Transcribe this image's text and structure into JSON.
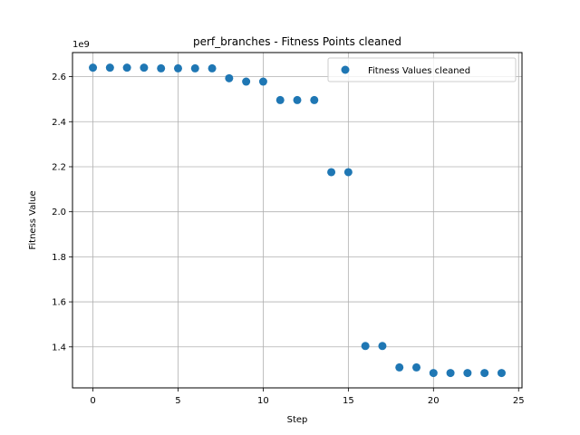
{
  "chart_data": {
    "type": "scatter",
    "title": "perf_branches - Fitness Points cleaned",
    "xlabel": "Step",
    "ylabel": "Fitness Value",
    "y_offset_label": "1e9",
    "grid": true,
    "legend_position": "top-right",
    "xlim": [
      -1.2,
      25.2
    ],
    "ylim": [
      1.218,
      2.707
    ],
    "x_ticks": [
      0,
      5,
      10,
      15,
      20,
      25
    ],
    "x_tick_labels": [
      "0",
      "5",
      "10",
      "15",
      "20",
      "25"
    ],
    "y_ticks": [
      1.4,
      1.6,
      1.8,
      2.0,
      2.2,
      2.4,
      2.6
    ],
    "y_tick_labels": [
      "1.4",
      "1.6",
      "1.8",
      "2.0",
      "2.2",
      "2.4",
      "2.6"
    ],
    "series": [
      {
        "name": "Fitness Values cleaned",
        "color": "#1f77b4",
        "x": [
          0,
          1,
          2,
          3,
          4,
          5,
          6,
          7,
          8,
          9,
          10,
          11,
          12,
          13,
          14,
          15,
          16,
          17,
          18,
          19,
          20,
          21,
          22,
          23,
          24
        ],
        "y": [
          2.64,
          2.64,
          2.64,
          2.64,
          2.637,
          2.637,
          2.637,
          2.637,
          2.593,
          2.578,
          2.578,
          2.496,
          2.496,
          2.496,
          2.176,
          2.176,
          1.404,
          1.404,
          1.309,
          1.309,
          1.284,
          1.284,
          1.284,
          1.284,
          1.284
        ]
      }
    ]
  }
}
